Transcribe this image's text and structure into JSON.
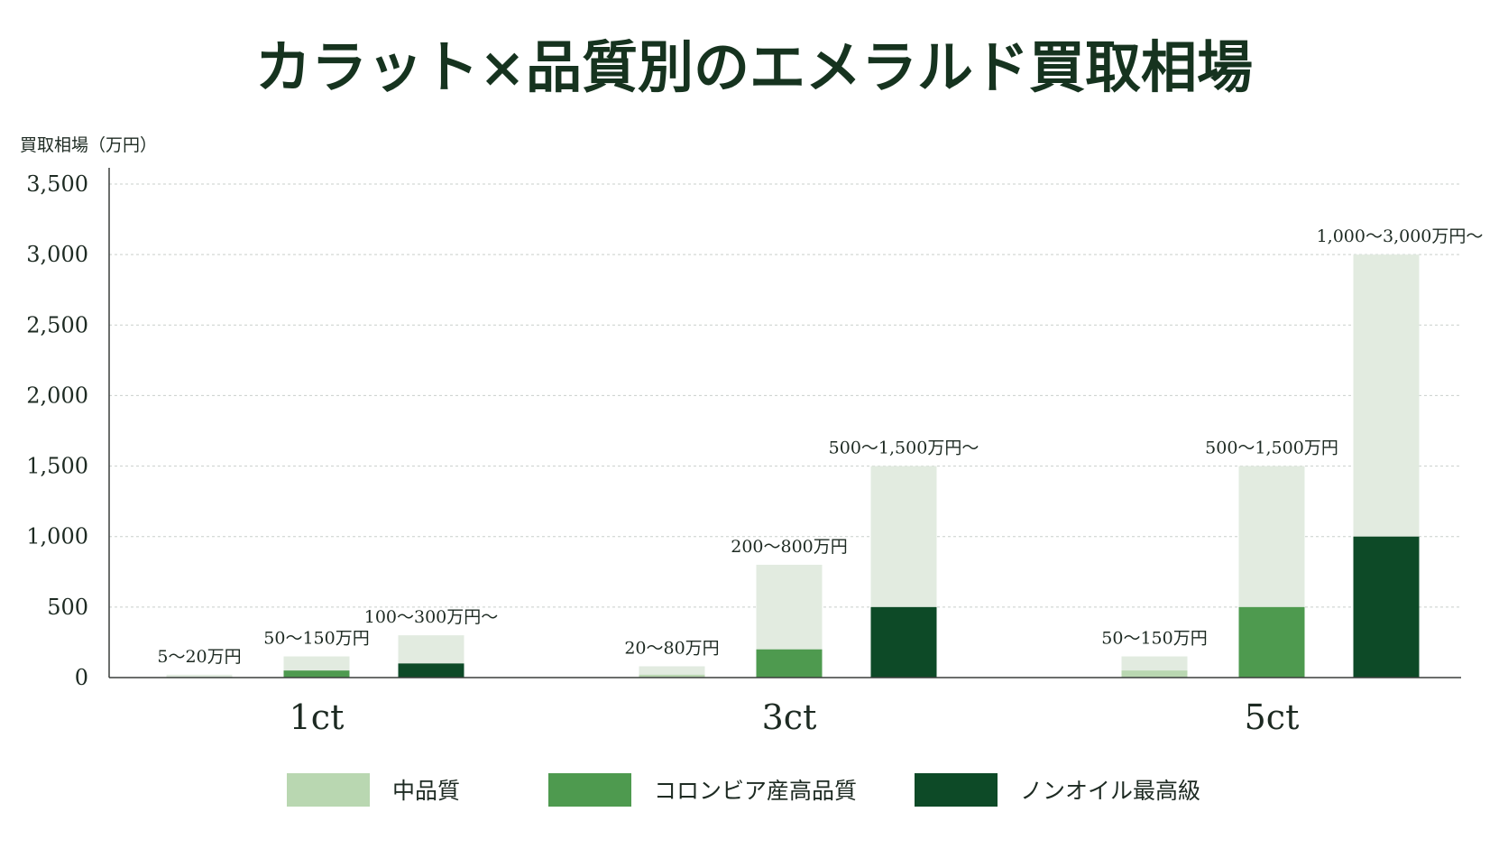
{
  "chart_data": {
    "type": "bar",
    "title": "カラット×品質別のエメラルド買取相場",
    "ylabel": "買取相場（万円）",
    "ylim": [
      0,
      3700
    ],
    "yticks": [
      0,
      500,
      1000,
      1500,
      2000,
      2500,
      3000,
      3500
    ],
    "ytick_labels": [
      "0",
      "500",
      "1,000",
      "1,500",
      "2,000",
      "2,500",
      "3,000",
      "3,500"
    ],
    "grid": "horizontal dotted",
    "legend_position": "bottom",
    "categories": [
      "1ct",
      "3ct",
      "5ct"
    ],
    "series": [
      {
        "name": "中品質",
        "color": "#b9d7b1",
        "low": [
          5,
          20,
          50
        ],
        "high": [
          20,
          80,
          150
        ],
        "labels": [
          "5〜20万円",
          "20〜80万円",
          "50〜150万円"
        ]
      },
      {
        "name": "コロンビア産高品質",
        "color": "#4e9a4f",
        "low": [
          50,
          200,
          500
        ],
        "high": [
          150,
          800,
          1500
        ],
        "labels": [
          "50〜150万円",
          "200〜800万円",
          "500〜1,500万円"
        ]
      },
      {
        "name": "ノンオイル最高級",
        "color": "#0d4a27",
        "low": [
          100,
          500,
          1000
        ],
        "high": [
          300,
          1500,
          3000
        ],
        "labels": [
          "100〜300万円〜",
          "500〜1,500万円〜",
          "1,000〜3,000万円〜"
        ]
      }
    ],
    "range_color": "#e2ebe0"
  }
}
